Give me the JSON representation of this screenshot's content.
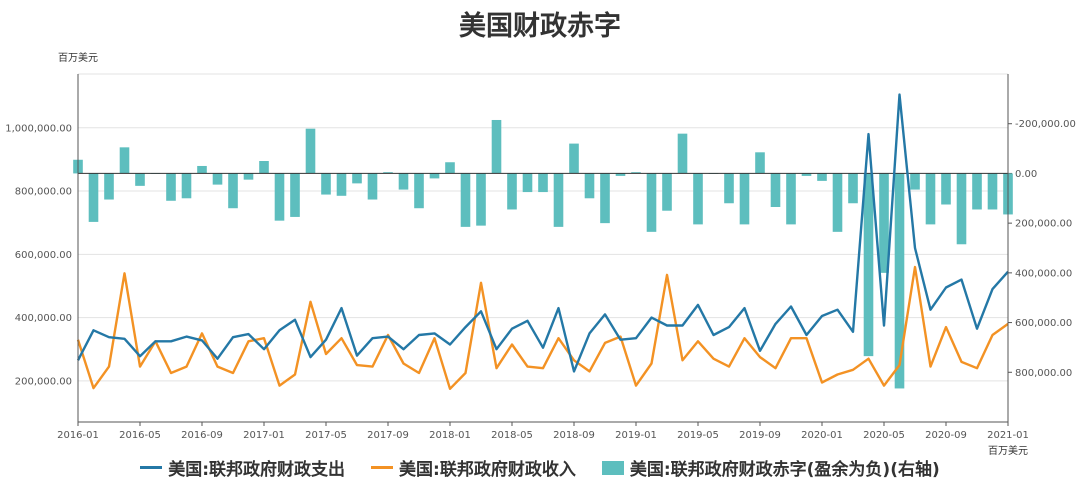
{
  "title": "美国财政赤字",
  "unit_left": "百万美元",
  "unit_right": "百万美元",
  "colors": {
    "spending": "#2478a6",
    "receipts": "#f39224",
    "deficit": "#5dbebe",
    "grid": "#e3e3e3",
    "axis": "#555555"
  },
  "legend": [
    {
      "name": "美国:联邦政府财政支出",
      "kind": "line",
      "color": "#2478a6"
    },
    {
      "name": "美国:联邦政府财政收入",
      "kind": "line",
      "color": "#f39224"
    },
    {
      "name": "美国:联邦政府财政赤字(盈余为负)(右轴)",
      "kind": "bar",
      "color": "#5dbebe"
    }
  ],
  "chart_data": {
    "type": "bar+line",
    "x_ticks": [
      "2016-01",
      "2016-05",
      "2016-09",
      "2017-01",
      "2017-05",
      "2017-09",
      "2018-01",
      "2018-05",
      "2018-09",
      "2019-01",
      "2019-05",
      "2019-09",
      "2020-01",
      "2020-05",
      "2020-09",
      "2021-01"
    ],
    "left_axis": {
      "ticks": [
        "200,000.00",
        "400,000.00",
        "600,000.00",
        "800,000.00",
        "1,000,000.00"
      ],
      "range": [
        70000,
        1170000
      ]
    },
    "right_axis": {
      "ticks": [
        "-200,000.00",
        "0.00",
        "200,000.00",
        "400,000.00",
        "600,000.00",
        "800,000.00"
      ],
      "range": [
        -400000,
        1000000
      ],
      "inverted": true
    },
    "series": [
      {
        "name": "美国:联邦政府财政支出",
        "axis": "left",
        "values": [
          265000,
          360000,
          338000,
          333000,
          278000,
          325000,
          325000,
          340000,
          328000,
          270000,
          338000,
          348000,
          300000,
          360000,
          393000,
          275000,
          330000,
          430000,
          280000,
          335000,
          340000,
          300000,
          345000,
          350000,
          315000,
          370000,
          420000,
          300000,
          365000,
          390000,
          305000,
          430000,
          230000,
          350000,
          410000,
          330000,
          335000,
          400000,
          375000,
          375000,
          440000,
          345000,
          370000,
          430000,
          295000,
          380000,
          435000,
          345000,
          405000,
          425000,
          355000,
          980000,
          375000,
          1105000,
          620000,
          425000,
          495000,
          520000,
          365000,
          490000,
          545000
        ]
      },
      {
        "name": "美国:联邦政府财政收入",
        "axis": "left",
        "values": [
          330000,
          177000,
          245000,
          540000,
          245000,
          325000,
          225000,
          245000,
          350000,
          245000,
          225000,
          325000,
          335000,
          185000,
          220000,
          450000,
          285000,
          335000,
          250000,
          245000,
          345000,
          255000,
          225000,
          335000,
          175000,
          225000,
          510000,
          240000,
          315000,
          245000,
          240000,
          335000,
          265000,
          230000,
          320000,
          340000,
          185000,
          255000,
          535000,
          265000,
          325000,
          270000,
          245000,
          335000,
          275000,
          240000,
          335000,
          335000,
          195000,
          220000,
          235000,
          270000,
          185000,
          250000,
          560000,
          245000,
          370000,
          260000,
          240000,
          345000,
          380000
        ]
      },
      {
        "name": "美国:联邦政府财政赤字(盈余为负)(右轴)",
        "axis": "right",
        "values": [
          -55000,
          195000,
          105000,
          -105000,
          50000,
          0,
          110000,
          100000,
          -30000,
          45000,
          140000,
          25000,
          -50000,
          190000,
          175000,
          -180000,
          85000,
          90000,
          40000,
          105000,
          -5000,
          65000,
          140000,
          20000,
          -45000,
          215000,
          210000,
          -215000,
          145000,
          75000,
          75000,
          215000,
          -120000,
          100000,
          200000,
          10000,
          -5000,
          235000,
          150000,
          -160000,
          205000,
          0,
          120000,
          205000,
          -85000,
          135000,
          205000,
          10000,
          30000,
          235000,
          120000,
          735000,
          400000,
          865000,
          65000,
          205000,
          125000,
          285000,
          145000,
          145000,
          165000
        ]
      }
    ]
  }
}
